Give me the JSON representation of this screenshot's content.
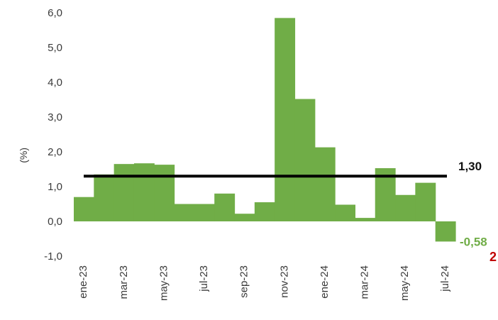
{
  "colors": {
    "bar": "#70ad47",
    "avg_line": "#000000",
    "last_label": "#70ad47",
    "edge_mark": "#c00000"
  },
  "edge_mark_text": "2",
  "chart_data": {
    "type": "bar",
    "title": "",
    "xlabel": "",
    "ylabel": "(%)",
    "ylim": [
      -1.0,
      6.0
    ],
    "yticks": [
      "6,0",
      "5,0",
      "4,0",
      "3,0",
      "2,0",
      "1,0",
      "0,0",
      "-1,0"
    ],
    "ytick_values": [
      6,
      5,
      4,
      3,
      2,
      1,
      0,
      -1
    ],
    "categories": [
      "ene-23",
      "feb-23",
      "mar-23",
      "abr-23",
      "may-23",
      "jun-23",
      "jul-23",
      "ago-23",
      "sep-23",
      "oct-23",
      "nov-23",
      "dic-23",
      "ene-24",
      "feb-24",
      "mar-24",
      "abr-24",
      "may-24",
      "jun-24",
      "jul-24"
    ],
    "x_tick_labels": [
      "ene-23",
      "mar-23",
      "may-23",
      "jul-23",
      "sep-23",
      "nov-23",
      "ene-24",
      "mar-24",
      "may-24",
      "jul-24"
    ],
    "values": [
      0.7,
      1.35,
      1.65,
      1.67,
      1.63,
      0.5,
      0.5,
      0.8,
      0.22,
      0.55,
      5.85,
      3.52,
      2.13,
      0.48,
      0.1,
      1.53,
      0.76,
      1.11,
      -0.58
    ],
    "reference_line": {
      "value": 1.3,
      "label": "1,30"
    },
    "last_value_label": "-0,58",
    "grid": false
  }
}
